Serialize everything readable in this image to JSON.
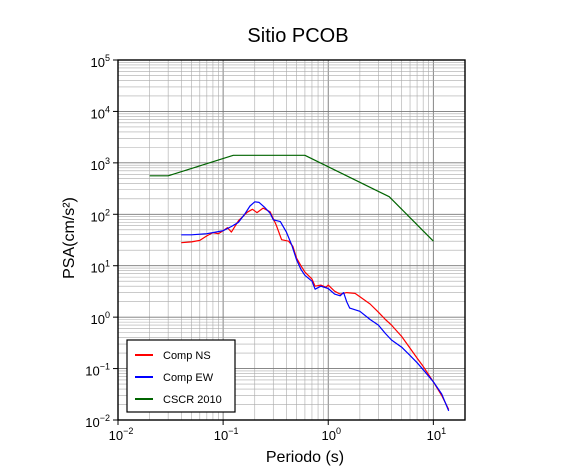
{
  "chart_data": {
    "type": "line",
    "title": "Sitio PCOB",
    "xlabel": "Periodo (s)",
    "ylabel": "PSA(cm/s²)",
    "x_scale": "log",
    "y_scale": "log",
    "xlim": [
      0.01,
      20
    ],
    "ylim": [
      0.01,
      100000
    ],
    "x_ticks": [
      {
        "base": "10",
        "exp": "−2"
      },
      {
        "base": "10",
        "exp": "−1"
      },
      {
        "base": "10",
        "exp": "0"
      },
      {
        "base": "10",
        "exp": "1"
      }
    ],
    "y_ticks": [
      {
        "base": "10",
        "exp": "−2"
      },
      {
        "base": "10",
        "exp": "−1"
      },
      {
        "base": "10",
        "exp": "0"
      },
      {
        "base": "10",
        "exp": "1"
      },
      {
        "base": "10",
        "exp": "2"
      },
      {
        "base": "10",
        "exp": "3"
      },
      {
        "base": "10",
        "exp": "4"
      },
      {
        "base": "10",
        "exp": "5"
      }
    ],
    "grid": true,
    "legend": "bottom-left",
    "series": [
      {
        "name": "Comp NS",
        "color": "#ff0000",
        "points": [
          [
            0.04,
            28
          ],
          [
            0.05,
            29
          ],
          [
            0.06,
            31
          ],
          [
            0.07,
            38
          ],
          [
            0.08,
            44
          ],
          [
            0.09,
            42
          ],
          [
            0.1,
            48
          ],
          [
            0.11,
            55
          ],
          [
            0.12,
            45
          ],
          [
            0.14,
            75
          ],
          [
            0.17,
            110
          ],
          [
            0.19,
            125
          ],
          [
            0.21,
            108
          ],
          [
            0.24,
            132
          ],
          [
            0.28,
            112
          ],
          [
            0.32,
            62
          ],
          [
            0.36,
            32
          ],
          [
            0.42,
            30
          ],
          [
            0.46,
            24
          ],
          [
            0.5,
            14
          ],
          [
            0.55,
            10
          ],
          [
            0.6,
            7.5
          ],
          [
            0.7,
            5.5
          ],
          [
            0.75,
            4
          ],
          [
            0.85,
            4.2
          ],
          [
            0.95,
            3.8
          ],
          [
            1.0,
            4.2
          ],
          [
            1.15,
            3.2
          ],
          [
            1.3,
            2.8
          ],
          [
            1.5,
            3.0
          ],
          [
            1.8,
            2.9
          ],
          [
            2.0,
            2.5
          ],
          [
            2.5,
            1.8
          ],
          [
            3.0,
            1.25
          ],
          [
            3.5,
            0.9
          ],
          [
            4.0,
            0.7
          ],
          [
            5.0,
            0.42
          ],
          [
            6.0,
            0.25
          ],
          [
            7.0,
            0.16
          ],
          [
            8.0,
            0.11
          ],
          [
            10.0,
            0.055
          ],
          [
            12.0,
            0.03
          ],
          [
            14.0,
            0.016
          ]
        ]
      },
      {
        "name": "Comp EW",
        "color": "#0000ff",
        "points": [
          [
            0.04,
            40
          ],
          [
            0.05,
            40
          ],
          [
            0.07,
            42
          ],
          [
            0.09,
            46
          ],
          [
            0.1,
            48
          ],
          [
            0.12,
            58
          ],
          [
            0.14,
            70
          ],
          [
            0.16,
            100
          ],
          [
            0.18,
            145
          ],
          [
            0.2,
            175
          ],
          [
            0.22,
            170
          ],
          [
            0.25,
            135
          ],
          [
            0.28,
            105
          ],
          [
            0.3,
            78
          ],
          [
            0.35,
            72
          ],
          [
            0.4,
            45
          ],
          [
            0.45,
            25
          ],
          [
            0.5,
            13
          ],
          [
            0.55,
            8.5
          ],
          [
            0.6,
            6.5
          ],
          [
            0.7,
            5
          ],
          [
            0.75,
            3.5
          ],
          [
            0.85,
            4.0
          ],
          [
            1.0,
            3.6
          ],
          [
            1.15,
            2.8
          ],
          [
            1.3,
            2.6
          ],
          [
            1.4,
            3.0
          ],
          [
            1.5,
            2.0
          ],
          [
            1.6,
            1.5
          ],
          [
            2.0,
            1.3
          ],
          [
            2.5,
            0.9
          ],
          [
            3.0,
            0.7
          ],
          [
            3.5,
            0.48
          ],
          [
            4.0,
            0.36
          ],
          [
            5.0,
            0.26
          ],
          [
            6.0,
            0.18
          ],
          [
            7.0,
            0.13
          ],
          [
            8.0,
            0.095
          ],
          [
            10.0,
            0.055
          ],
          [
            12.0,
            0.032
          ],
          [
            14.0,
            0.015
          ]
        ]
      },
      {
        "name": "CSCR 2010",
        "color": "#006400",
        "points": [
          [
            0.02,
            560
          ],
          [
            0.03,
            560
          ],
          [
            0.125,
            1400
          ],
          [
            0.6,
            1400
          ],
          [
            3.8,
            220
          ],
          [
            10.0,
            30
          ]
        ]
      }
    ]
  }
}
